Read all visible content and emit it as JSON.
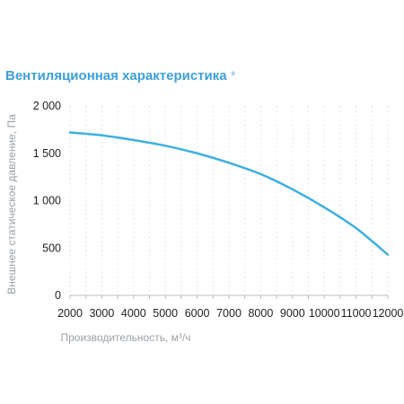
{
  "chart_data": {
    "type": "line",
    "title": "Вентиляционная характеристика",
    "title_mark": "*",
    "xlabel": "Производительность, м³/ч",
    "ylabel": "Внешнее статическое давление, Па",
    "xlim": [
      2000,
      12000
    ],
    "ylim": [
      0,
      2000
    ],
    "x_ticks": [
      2000,
      3000,
      4000,
      5000,
      6000,
      7000,
      8000,
      9000,
      10000,
      11000,
      12000
    ],
    "x_tick_labels": [
      "2000",
      "3000",
      "4000",
      "5000",
      "6000",
      "7000",
      "8000",
      "9000",
      "10000",
      "11000",
      "12000"
    ],
    "y_ticks": [
      0,
      500,
      1000,
      1500,
      2000
    ],
    "y_tick_labels": [
      "0",
      "500",
      "1 000",
      "1 500",
      "2 000"
    ],
    "grid": "vertical-minor",
    "line_color": "#3fb0e0",
    "series": [
      {
        "x": [
          2000,
          3000,
          4000,
          5000,
          6000,
          7000,
          8000,
          9000,
          10000,
          11000,
          12000
        ],
        "y": [
          1720,
          1690,
          1640,
          1580,
          1500,
          1400,
          1280,
          1120,
          930,
          710,
          430
        ]
      }
    ]
  }
}
